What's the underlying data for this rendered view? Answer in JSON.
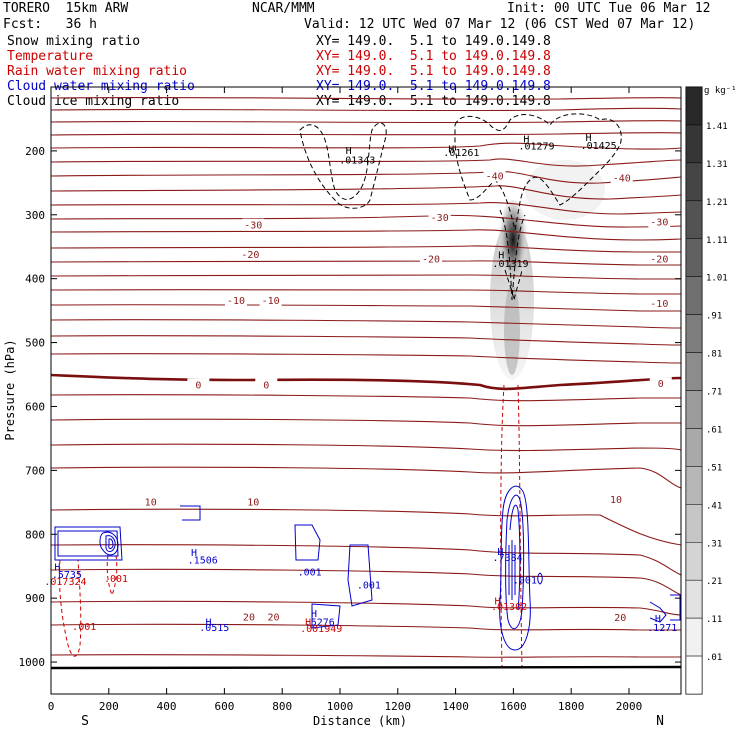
{
  "header": {
    "model_line": "TORERO  15km ARW",
    "center": "NCAR/MMM",
    "init": "Init: 00 UTC Tue 06 Mar 12",
    "fcst": "Fcst:   36 h",
    "valid": "Valid: 12 UTC Wed 07 Mar 12 (06 CST Wed 07 Mar 12)"
  },
  "legend": [
    {
      "label": "Snow mixing ratio",
      "color": "#000000",
      "xy": "XY= 149.0.  5.1 to 149.0.149.8",
      "xy_color": "#000000"
    },
    {
      "label": "Temperature",
      "color": "#cc0000",
      "xy": "XY= 149.0.  5.1 to 149.0.149.8",
      "xy_color": "#cc0000"
    },
    {
      "label": "Rain water mixing ratio",
      "color": "#cc0000",
      "xy": "XY= 149.0.  5.1 to 149.0.149.8",
      "xy_color": "#cc0000"
    },
    {
      "label": "Cloud water mixing ratio",
      "color": "#0000cc",
      "xy": "XY= 149.0.  5.1 to 149.0.149.8",
      "xy_color": "#0000cc"
    },
    {
      "label": "Cloud ice mixing ratio",
      "color": "#000000",
      "xy": "XY= 149.0.  5.1 to 149.0.149.8",
      "xy_color": "#000000"
    }
  ],
  "chart_data": {
    "type": "cross-section",
    "xlabel": "Distance (km)",
    "ylabel": "Pressure (hPa)",
    "xlim": [
      0,
      2180
    ],
    "ylim": [
      1050,
      100
    ],
    "x_ticks": [
      0,
      200,
      400,
      600,
      800,
      1000,
      1200,
      1400,
      1600,
      1800,
      2000
    ],
    "y_ticks": [
      200,
      300,
      400,
      500,
      600,
      700,
      800,
      900,
      1000
    ],
    "left_end": "S",
    "right_end": "N",
    "colorbar": {
      "unit": "g kg⁻¹",
      "levels": [
        "1.41",
        "1.31",
        "1.21",
        "1.11",
        "1.01",
        ".91",
        ".81",
        ".71",
        ".61",
        ".51",
        ".41",
        ".31",
        ".21",
        ".11",
        ".01"
      ]
    },
    "temperature_labels": [
      {
        "text": "-40",
        "x": 1535,
        "p": 240
      },
      {
        "text": "-40",
        "x": 1975,
        "p": 243
      },
      {
        "text": "-30",
        "x": 700,
        "p": 317
      },
      {
        "text": "-30",
        "x": 1345,
        "p": 305
      },
      {
        "text": "-30",
        "x": 2105,
        "p": 312
      },
      {
        "text": "-20",
        "x": 690,
        "p": 363
      },
      {
        "text": "-20",
        "x": 1315,
        "p": 370
      },
      {
        "text": "-20",
        "x": 2105,
        "p": 370
      },
      {
        "text": "-10",
        "x": 640,
        "p": 435
      },
      {
        "text": "-10",
        "x": 760,
        "p": 435
      },
      {
        "text": "-10",
        "x": 2105,
        "p": 440
      },
      {
        "text": "0",
        "x": 510,
        "p": 567
      },
      {
        "text": "0",
        "x": 745,
        "p": 567
      },
      {
        "text": "0",
        "x": 2110,
        "p": 565
      },
      {
        "text": "10",
        "x": 345,
        "p": 750
      },
      {
        "text": "10",
        "x": 700,
        "p": 750
      },
      {
        "text": "10",
        "x": 1955,
        "p": 746
      },
      {
        "text": "20",
        "x": 685,
        "p": 930
      },
      {
        "text": "20",
        "x": 770,
        "p": 930
      },
      {
        "text": "20",
        "x": 1970,
        "p": 931
      }
    ],
    "maxima_labels": [
      {
        "text": "H",
        "x": 1030,
        "p": 200,
        "color": "#000000"
      },
      {
        "text": ".01343",
        "x": 1060,
        "p": 215,
        "color": "#000000"
      },
      {
        "text": "H",
        "x": 1385,
        "p": 198,
        "color": "#000000"
      },
      {
        "text": ".01261",
        "x": 1420,
        "p": 203,
        "color": "#000000"
      },
      {
        "text": "H",
        "x": 1645,
        "p": 182,
        "color": "#000000"
      },
      {
        "text": ".01279",
        "x": 1680,
        "p": 193,
        "color": "#000000"
      },
      {
        "text": "H",
        "x": 1860,
        "p": 180,
        "color": "#000000"
      },
      {
        "text": ".01425",
        "x": 1895,
        "p": 192,
        "color": "#000000"
      },
      {
        "text": "H",
        "x": 1558,
        "p": 364,
        "color": "#000000"
      },
      {
        "text": ".01319",
        "x": 1590,
        "p": 377,
        "color": "#000000"
      },
      {
        "text": "H",
        "x": 495,
        "p": 829,
        "color": "#0000cc"
      },
      {
        "text": ".1506",
        "x": 525,
        "p": 841,
        "color": "#0000cc"
      },
      {
        "text": "H",
        "x": 22,
        "p": 852,
        "color": "#0000cc"
      },
      {
        "text": ".5735",
        "x": 55,
        "p": 864,
        "color": "#0000cc"
      },
      {
        "text": ".017324",
        "x": 50,
        "p": 875,
        "color": "#cc0000"
      },
      {
        "text": ".001",
        "x": 225,
        "p": 870,
        "color": "#cc0000"
      },
      {
        "text": ".001",
        "x": 895,
        "p": 860,
        "color": "#0000cc"
      },
      {
        "text": ".001",
        "x": 1100,
        "p": 880,
        "color": "#0000cc"
      },
      {
        "text": "H",
        "x": 545,
        "p": 938,
        "color": "#0000cc"
      },
      {
        "text": ".0515",
        "x": 565,
        "p": 947,
        "color": "#0000cc"
      },
      {
        "text": "H",
        "x": 910,
        "p": 925,
        "color": "#0000cc"
      },
      {
        "text": "H",
        "x": 890,
        "p": 938,
        "color": "#cc0000"
      },
      {
        "text": ".5276",
        "x": 930,
        "p": 938,
        "color": "#0000cc"
      },
      {
        "text": ".001949",
        "x": 935,
        "p": 948,
        "color": "#cc0000"
      },
      {
        "text": "H",
        "x": 1555,
        "p": 828,
        "color": "#0000cc"
      },
      {
        "text": ".7384",
        "x": 1580,
        "p": 837,
        "color": "#0000cc"
      },
      {
        "text": ".001",
        "x": 1640,
        "p": 872,
        "color": "#0000cc"
      },
      {
        "text": "H",
        "x": 1545,
        "p": 905,
        "color": "#cc0000"
      },
      {
        "text": ".01302",
        "x": 1585,
        "p": 914,
        "color": "#cc0000"
      },
      {
        "text": ".001",
        "x": 115,
        "p": 945,
        "color": "#cc0000"
      },
      {
        "text": "H",
        "x": 2100,
        "p": 933,
        "color": "#0000cc"
      },
      {
        "text": ".1271",
        "x": 2115,
        "p": 947,
        "color": "#0000cc"
      }
    ]
  }
}
